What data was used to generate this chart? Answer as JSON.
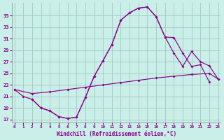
{
  "xlabel": "Windchill (Refroidissement éolien,°C)",
  "bg_color": "#caeee8",
  "line_color": "#8b008b",
  "grid_color": "#a0ccc0",
  "xlim": [
    -0.3,
    23.3
  ],
  "ylim": [
    16.5,
    37.2
  ],
  "yticks": [
    17,
    19,
    21,
    23,
    25,
    27,
    29,
    31,
    33,
    35
  ],
  "xticks": [
    0,
    1,
    2,
    3,
    4,
    5,
    6,
    7,
    8,
    9,
    10,
    11,
    12,
    13,
    14,
    15,
    16,
    17,
    18,
    19,
    20,
    21,
    22,
    23
  ],
  "curve1_x": [
    0,
    1,
    2,
    3,
    4,
    5,
    6,
    7,
    8,
    9,
    10,
    11,
    12,
    13,
    14,
    15,
    16,
    17,
    18,
    19,
    20,
    21,
    22
  ],
  "curve1_y": [
    22.2,
    21.0,
    20.5,
    19.0,
    18.5,
    17.5,
    17.2,
    17.4,
    20.8,
    24.5,
    27.2,
    30.0,
    34.2,
    35.5,
    36.3,
    36.5,
    34.8,
    31.3,
    31.2,
    28.5,
    26.2,
    26.5,
    23.5
  ],
  "curve2_x": [
    0,
    2,
    4,
    6,
    8,
    10,
    12,
    14,
    16,
    18,
    20,
    22,
    23
  ],
  "curve2_y": [
    22.2,
    21.5,
    21.8,
    22.2,
    22.6,
    23.0,
    23.4,
    23.8,
    24.2,
    24.5,
    24.8,
    25.0,
    24.0
  ],
  "curve3_x": [
    2,
    3,
    4,
    5,
    6,
    7,
    8,
    9,
    10,
    11,
    12,
    13,
    14,
    15,
    16,
    17,
    18,
    19,
    20,
    21,
    22,
    23
  ],
  "curve3_y": [
    20.5,
    19.0,
    18.5,
    17.5,
    17.2,
    17.4,
    20.8,
    24.5,
    27.2,
    30.0,
    34.2,
    35.5,
    36.3,
    36.5,
    34.8,
    31.3,
    28.5,
    26.2,
    28.8,
    27.0,
    26.3,
    24.0
  ]
}
